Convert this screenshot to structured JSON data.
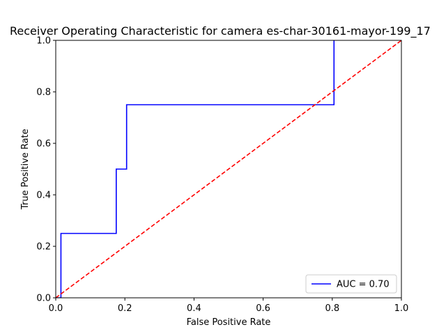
{
  "chart_data": {
    "type": "line",
    "title": "Receiver Operating Characteristic for camera es-char-30161-mayor-199_17",
    "xlabel": "False Positive Rate",
    "ylabel": "True Positive Rate",
    "xlim": [
      0.0,
      1.0
    ],
    "ylim": [
      0.0,
      1.0
    ],
    "x_ticks": [
      "0.0",
      "0.2",
      "0.4",
      "0.6",
      "0.8",
      "1.0"
    ],
    "y_ticks": [
      "0.0",
      "0.2",
      "0.4",
      "0.6",
      "0.8",
      "1.0"
    ],
    "grid": false,
    "legend_position": "lower-right",
    "series": [
      {
        "name": "AUC = 0.70",
        "color": "#0000ff",
        "style": "solid",
        "x": [
          0.0,
          0.015,
          0.015,
          0.175,
          0.175,
          0.205,
          0.205,
          0.805,
          0.805
        ],
        "y": [
          0.0,
          0.0,
          0.25,
          0.25,
          0.5,
          0.5,
          0.75,
          0.75,
          1.0
        ]
      },
      {
        "color": "#ff0000",
        "style": "dashed",
        "x": [
          0.0,
          1.0
        ],
        "y": [
          0.0,
          1.0
        ]
      }
    ]
  }
}
